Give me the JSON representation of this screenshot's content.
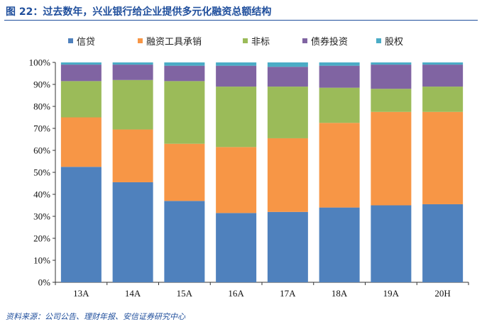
{
  "title": "图 22：过去数年，兴业银行给企业提供多元化融资总额结构",
  "source": "资料来源：公司公告、理财年报、安信证券研究中心",
  "chart_data": {
    "type": "bar",
    "stacked": true,
    "categories": [
      "13A",
      "14A",
      "15A",
      "16A",
      "17A",
      "18A",
      "19A",
      "20H"
    ],
    "yticks": [
      "0%",
      "10%",
      "20%",
      "30%",
      "40%",
      "50%",
      "60%",
      "70%",
      "80%",
      "90%",
      "100%"
    ],
    "ylim": [
      0,
      100
    ],
    "legend_position": "top",
    "series": [
      {
        "name": "信贷",
        "color": "#4f81bd",
        "values": [
          52.5,
          45.5,
          37,
          31.5,
          32,
          34,
          35,
          35.5
        ]
      },
      {
        "name": "融资工具承销",
        "color": "#f79646",
        "values": [
          22.5,
          24,
          26,
          30,
          33.5,
          38.5,
          42.5,
          42
        ]
      },
      {
        "name": "非标",
        "color": "#9bbb59",
        "values": [
          16.5,
          22.5,
          28.5,
          27.5,
          23.5,
          16,
          10.5,
          11.5
        ]
      },
      {
        "name": "债券投资",
        "color": "#8064a2",
        "values": [
          7.5,
          7,
          7,
          9.5,
          9,
          10,
          11,
          10
        ]
      },
      {
        "name": "股权",
        "color": "#4bacc6",
        "values": [
          1,
          1,
          1.5,
          1.5,
          2,
          1.5,
          1,
          1
        ]
      }
    ]
  }
}
